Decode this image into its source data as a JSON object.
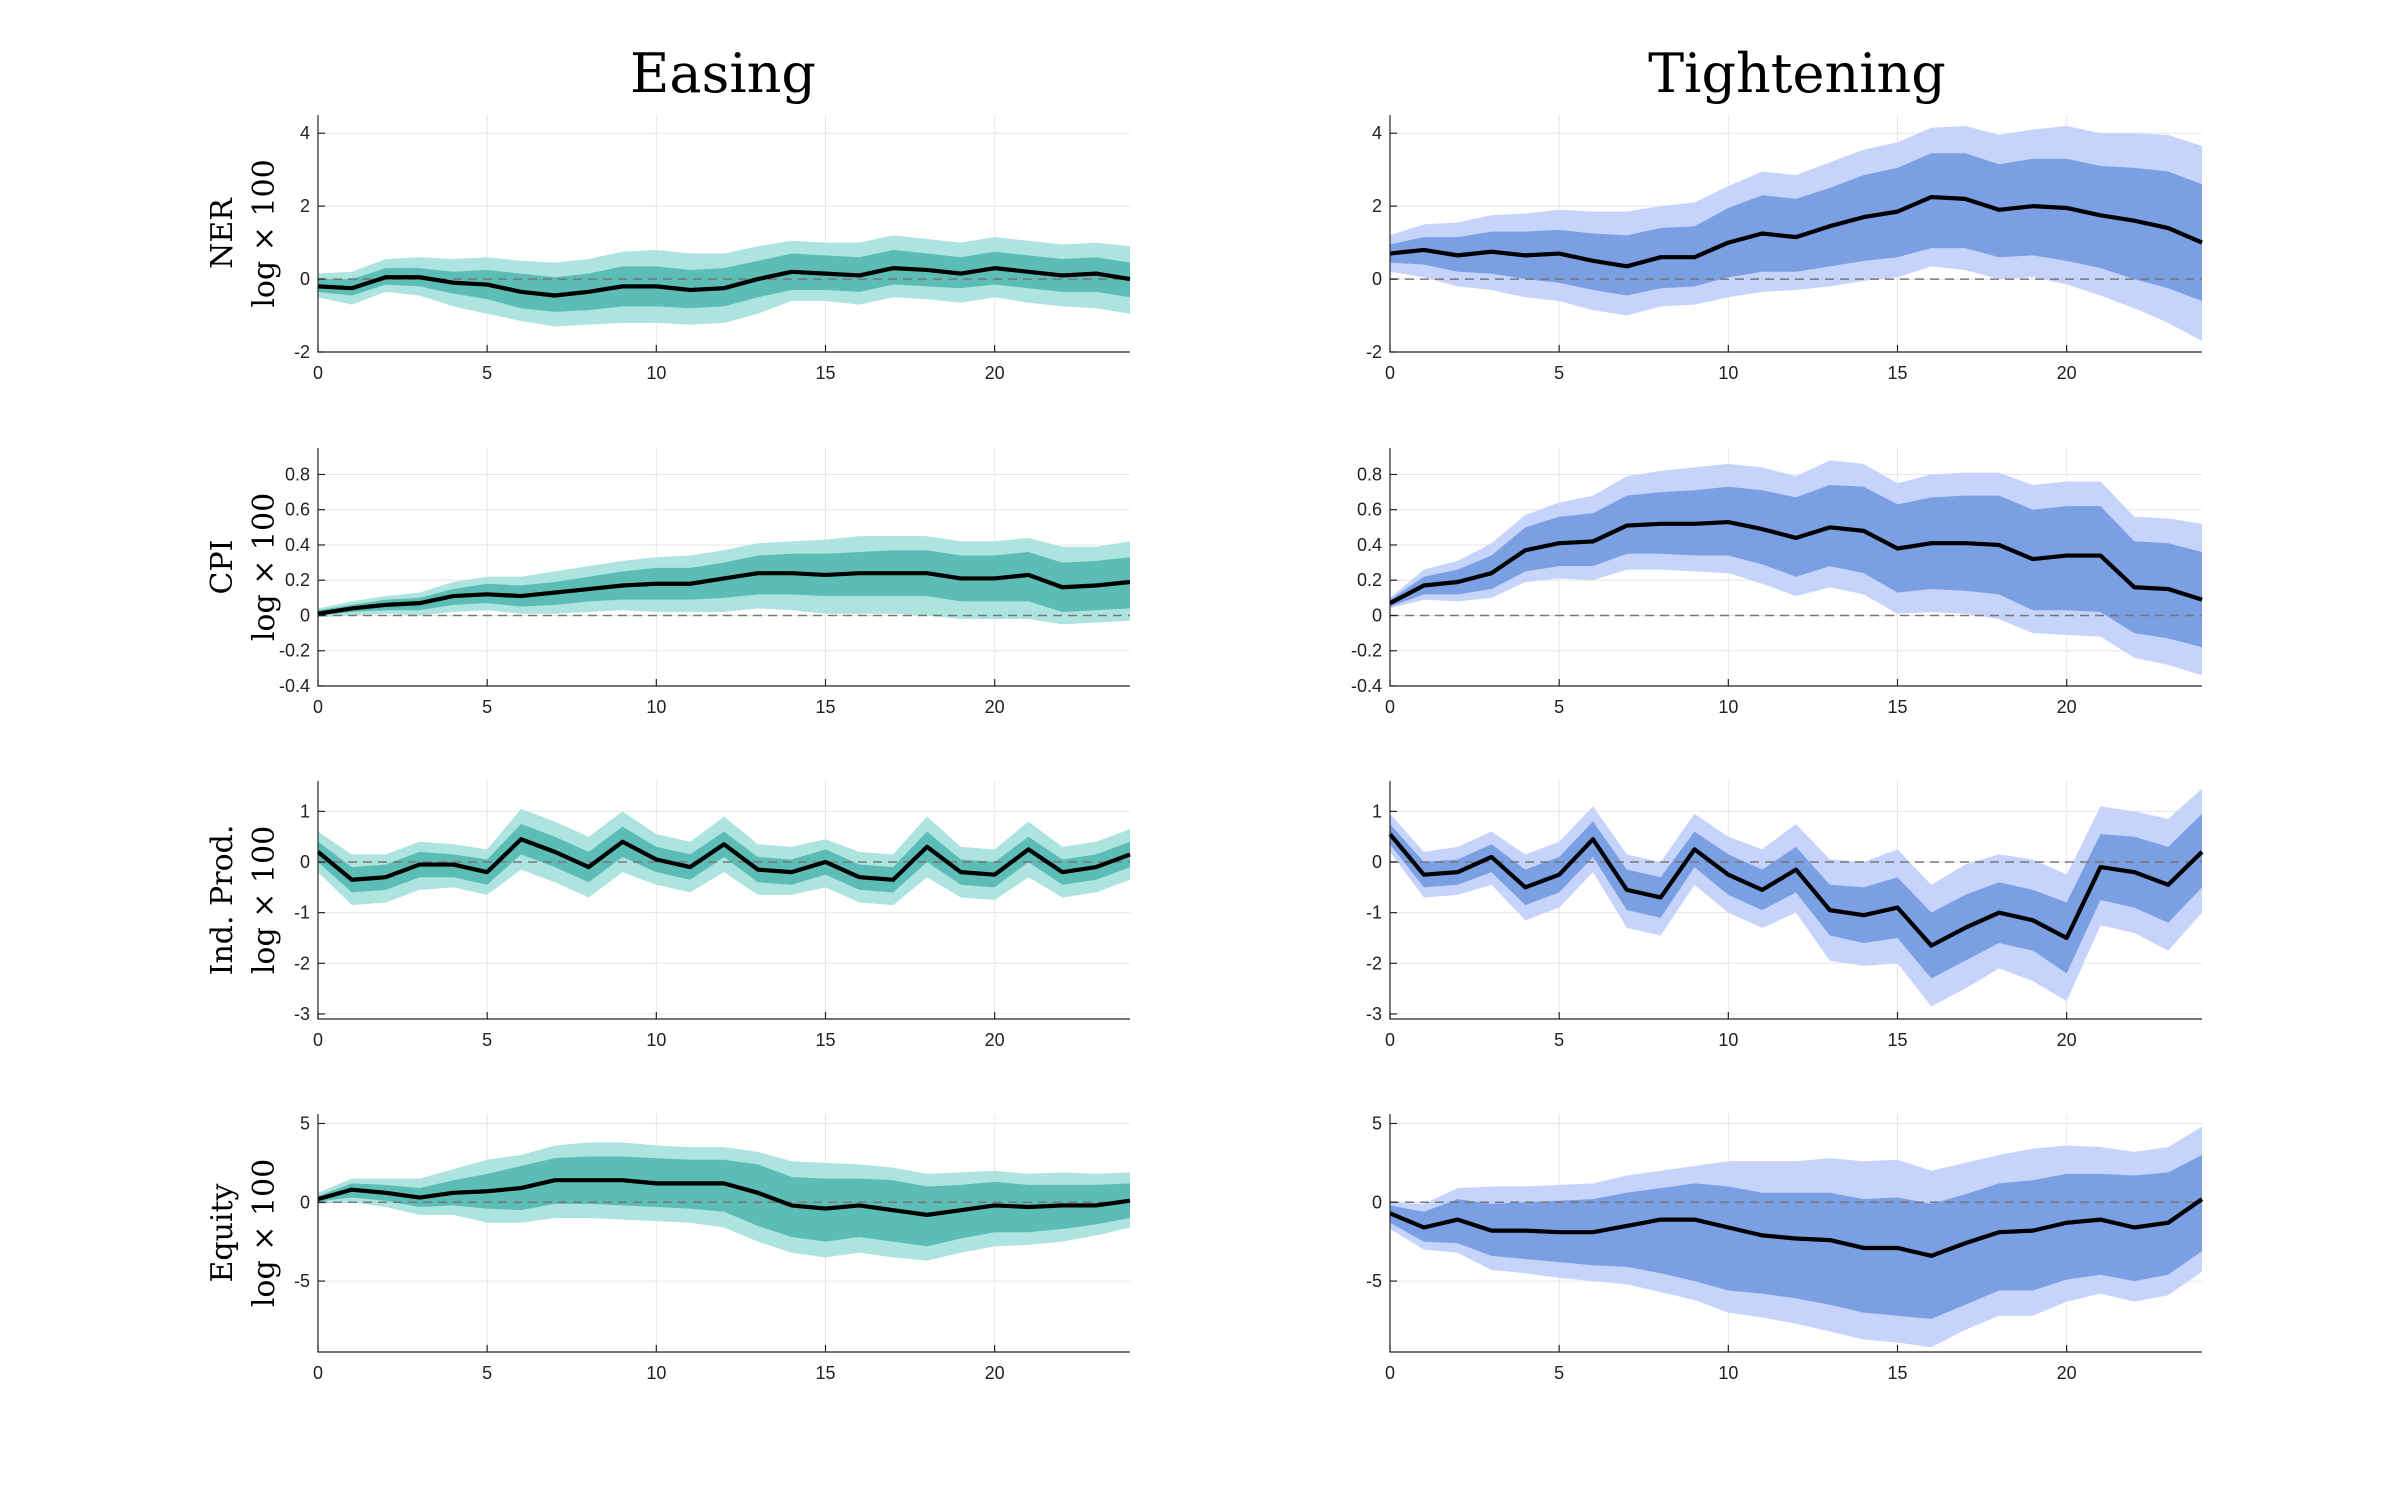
{
  "figure": {
    "col_titles": [
      "Easing",
      "Tightening"
    ],
    "colors": {
      "easing_outer": "#aee4df",
      "easing_inner": "#5bbdb6",
      "tightening_outer": "#c6d3fb",
      "tightening_inner": "#7b9fe3",
      "median": "#000000",
      "zero_line": "#777777"
    }
  },
  "chart_data": [
    {
      "type": "area",
      "panel": "ner-easing",
      "column": "Easing",
      "ylabel": [
        "NER",
        "log × 100"
      ],
      "xlim": [
        0,
        24
      ],
      "ylim": [
        -2,
        4.5
      ],
      "xticks": [
        0,
        5,
        10,
        15,
        20
      ],
      "yticks": [
        -2,
        0,
        2,
        4
      ],
      "ytick_labels": [
        "-2",
        "0",
        "2",
        "4"
      ],
      "median": [
        -0.2,
        -0.25,
        0.05,
        0.05,
        -0.1,
        -0.15,
        -0.35,
        -0.45,
        -0.35,
        -0.2,
        -0.2,
        -0.3,
        -0.25,
        0.0,
        0.2,
        0.15,
        0.1,
        0.3,
        0.25,
        0.15,
        0.3,
        0.2,
        0.1,
        0.15,
        0.0
      ],
      "band_inner_lo": [
        -0.35,
        -0.45,
        -0.15,
        -0.2,
        -0.4,
        -0.55,
        -0.8,
        -0.9,
        -0.85,
        -0.75,
        -0.75,
        -0.8,
        -0.75,
        -0.5,
        -0.3,
        -0.3,
        -0.35,
        -0.15,
        -0.2,
        -0.25,
        -0.15,
        -0.25,
        -0.35,
        -0.35,
        -0.5
      ],
      "band_inner_hi": [
        0.0,
        0.0,
        0.3,
        0.3,
        0.2,
        0.25,
        0.15,
        0.05,
        0.15,
        0.35,
        0.35,
        0.25,
        0.3,
        0.5,
        0.7,
        0.65,
        0.6,
        0.8,
        0.7,
        0.6,
        0.75,
        0.65,
        0.55,
        0.6,
        0.45
      ],
      "band_outer_lo": [
        -0.5,
        -0.7,
        -0.35,
        -0.45,
        -0.75,
        -0.95,
        -1.15,
        -1.3,
        -1.25,
        -1.2,
        -1.2,
        -1.25,
        -1.2,
        -0.95,
        -0.6,
        -0.6,
        -0.7,
        -0.5,
        -0.55,
        -0.65,
        -0.5,
        -0.65,
        -0.75,
        -0.8,
        -0.95
      ],
      "band_outer_hi": [
        0.15,
        0.2,
        0.55,
        0.6,
        0.55,
        0.6,
        0.5,
        0.45,
        0.55,
        0.75,
        0.8,
        0.7,
        0.7,
        0.9,
        1.05,
        1.0,
        1.0,
        1.2,
        1.1,
        1.0,
        1.15,
        1.05,
        0.95,
        1.0,
        0.9
      ]
    },
    {
      "type": "area",
      "panel": "ner-tightening",
      "column": "Tightening",
      "ylabel": [
        "NER",
        "log × 100"
      ],
      "xlim": [
        0,
        24
      ],
      "ylim": [
        -2,
        4.5
      ],
      "xticks": [
        0,
        5,
        10,
        15,
        20
      ],
      "yticks": [
        -2,
        0,
        2,
        4
      ],
      "ytick_labels": [
        "-2",
        "0",
        "2",
        "4"
      ],
      "median": [
        0.7,
        0.8,
        0.65,
        0.75,
        0.65,
        0.7,
        0.5,
        0.35,
        0.6,
        0.6,
        1.0,
        1.25,
        1.15,
        1.45,
        1.7,
        1.85,
        2.25,
        2.2,
        1.9,
        2.0,
        1.95,
        1.75,
        1.6,
        1.4,
        1.0
      ],
      "band_inner_lo": [
        0.45,
        0.4,
        0.2,
        0.15,
        0.0,
        -0.1,
        -0.3,
        -0.45,
        -0.25,
        -0.2,
        0.05,
        0.2,
        0.2,
        0.35,
        0.5,
        0.6,
        0.85,
        0.85,
        0.6,
        0.65,
        0.5,
        0.3,
        0.0,
        -0.25,
        -0.6
      ],
      "band_inner_hi": [
        0.95,
        1.15,
        1.15,
        1.3,
        1.3,
        1.35,
        1.25,
        1.2,
        1.4,
        1.45,
        1.95,
        2.3,
        2.2,
        2.5,
        2.85,
        3.05,
        3.45,
        3.45,
        3.15,
        3.3,
        3.3,
        3.1,
        3.05,
        2.95,
        2.6
      ],
      "band_outer_lo": [
        0.2,
        0.05,
        -0.2,
        -0.3,
        -0.5,
        -0.6,
        -0.85,
        -1.0,
        -0.75,
        -0.7,
        -0.5,
        -0.35,
        -0.3,
        -0.2,
        -0.05,
        0.05,
        0.35,
        0.25,
        0.0,
        0.05,
        -0.15,
        -0.45,
        -0.8,
        -1.2,
        -1.7
      ],
      "band_outer_hi": [
        1.2,
        1.5,
        1.55,
        1.75,
        1.8,
        1.9,
        1.85,
        1.85,
        2.0,
        2.1,
        2.55,
        2.95,
        2.85,
        3.2,
        3.55,
        3.75,
        4.15,
        4.2,
        3.95,
        4.1,
        4.2,
        4.0,
        4.0,
        3.95,
        3.65
      ]
    },
    {
      "type": "area",
      "panel": "cpi-easing",
      "column": "Easing",
      "ylabel": [
        "CPI",
        "log × 100"
      ],
      "xlim": [
        0,
        24
      ],
      "ylim": [
        -0.4,
        0.95
      ],
      "xticks": [
        0,
        5,
        10,
        15,
        20
      ],
      "yticks": [
        -0.4,
        -0.2,
        0,
        0.2,
        0.4,
        0.6,
        0.8
      ],
      "ytick_labels": [
        "-0.4",
        "-0.2",
        "0",
        "0.2",
        "0.4",
        "0.6",
        "0.8"
      ],
      "median": [
        0.01,
        0.04,
        0.06,
        0.07,
        0.11,
        0.12,
        0.11,
        0.13,
        0.15,
        0.17,
        0.18,
        0.18,
        0.21,
        0.24,
        0.24,
        0.23,
        0.24,
        0.24,
        0.24,
        0.21,
        0.21,
        0.23,
        0.16,
        0.17,
        0.19
      ],
      "band_inner_lo": [
        0.0,
        0.02,
        0.03,
        0.03,
        0.06,
        0.07,
        0.05,
        0.06,
        0.08,
        0.09,
        0.09,
        0.09,
        0.1,
        0.12,
        0.12,
        0.11,
        0.11,
        0.11,
        0.11,
        0.08,
        0.08,
        0.08,
        0.02,
        0.03,
        0.04
      ],
      "band_inner_hi": [
        0.03,
        0.06,
        0.09,
        0.1,
        0.15,
        0.18,
        0.17,
        0.19,
        0.22,
        0.25,
        0.27,
        0.27,
        0.3,
        0.34,
        0.35,
        0.35,
        0.36,
        0.37,
        0.37,
        0.34,
        0.34,
        0.36,
        0.3,
        0.31,
        0.33
      ],
      "band_outer_lo": [
        -0.01,
        0.0,
        0.01,
        0.0,
        0.02,
        0.03,
        0.01,
        0.01,
        0.02,
        0.03,
        0.02,
        0.02,
        0.02,
        0.04,
        0.03,
        0.01,
        0.01,
        0.01,
        0.0,
        -0.02,
        -0.02,
        -0.02,
        -0.05,
        -0.04,
        -0.03
      ],
      "band_outer_hi": [
        0.04,
        0.08,
        0.11,
        0.13,
        0.19,
        0.22,
        0.22,
        0.25,
        0.28,
        0.31,
        0.33,
        0.34,
        0.37,
        0.41,
        0.42,
        0.43,
        0.45,
        0.45,
        0.45,
        0.42,
        0.42,
        0.44,
        0.39,
        0.39,
        0.42
      ]
    },
    {
      "type": "area",
      "panel": "cpi-tightening",
      "column": "Tightening",
      "ylabel": [
        "CPI",
        "log × 100"
      ],
      "xlim": [
        0,
        24
      ],
      "ylim": [
        -0.4,
        0.95
      ],
      "xticks": [
        0,
        5,
        10,
        15,
        20
      ],
      "yticks": [
        -0.4,
        -0.2,
        0,
        0.2,
        0.4,
        0.6,
        0.8
      ],
      "ytick_labels": [
        "-0.4",
        "-0.2",
        "0",
        "0.2",
        "0.4",
        "0.6",
        "0.8"
      ],
      "median": [
        0.07,
        0.17,
        0.19,
        0.24,
        0.37,
        0.41,
        0.42,
        0.51,
        0.52,
        0.52,
        0.53,
        0.49,
        0.44,
        0.5,
        0.48,
        0.38,
        0.41,
        0.41,
        0.4,
        0.32,
        0.34,
        0.34,
        0.16,
        0.15,
        0.09
      ],
      "band_inner_lo": [
        0.05,
        0.12,
        0.12,
        0.15,
        0.25,
        0.28,
        0.28,
        0.35,
        0.35,
        0.34,
        0.34,
        0.29,
        0.22,
        0.28,
        0.24,
        0.13,
        0.15,
        0.14,
        0.12,
        0.03,
        0.03,
        0.02,
        -0.1,
        -0.13,
        -0.18
      ],
      "band_inner_hi": [
        0.09,
        0.22,
        0.26,
        0.34,
        0.5,
        0.56,
        0.58,
        0.68,
        0.7,
        0.71,
        0.73,
        0.71,
        0.67,
        0.74,
        0.73,
        0.63,
        0.67,
        0.68,
        0.68,
        0.6,
        0.62,
        0.62,
        0.42,
        0.41,
        0.36
      ],
      "band_outer_lo": [
        0.04,
        0.09,
        0.08,
        0.1,
        0.19,
        0.21,
        0.2,
        0.26,
        0.26,
        0.25,
        0.24,
        0.18,
        0.11,
        0.16,
        0.12,
        0.01,
        0.02,
        0.01,
        -0.02,
        -0.1,
        -0.11,
        -0.12,
        -0.24,
        -0.28,
        -0.34
      ],
      "band_outer_hi": [
        0.1,
        0.26,
        0.31,
        0.41,
        0.57,
        0.64,
        0.68,
        0.79,
        0.82,
        0.84,
        0.86,
        0.84,
        0.79,
        0.88,
        0.86,
        0.75,
        0.8,
        0.81,
        0.81,
        0.74,
        0.76,
        0.76,
        0.56,
        0.55,
        0.52
      ]
    },
    {
      "type": "area",
      "panel": "ip-easing",
      "column": "Easing",
      "ylabel": [
        "Ind. Prod.",
        "log × 100"
      ],
      "xlim": [
        0,
        24
      ],
      "ylim": [
        -3.1,
        1.6
      ],
      "xticks": [
        0,
        5,
        10,
        15,
        20
      ],
      "yticks": [
        -3,
        -2,
        -1,
        0,
        1
      ],
      "ytick_labels": [
        "-3",
        "-2",
        "-1",
        "0",
        "1"
      ],
      "median": [
        0.2,
        -0.35,
        -0.3,
        -0.05,
        -0.05,
        -0.2,
        0.45,
        0.2,
        -0.1,
        0.4,
        0.05,
        -0.1,
        0.35,
        -0.15,
        -0.2,
        0.0,
        -0.3,
        -0.35,
        0.3,
        -0.2,
        -0.25,
        0.25,
        -0.2,
        -0.1,
        0.15
      ],
      "band_inner_lo": [
        0.0,
        -0.6,
        -0.55,
        -0.3,
        -0.3,
        -0.45,
        0.15,
        -0.1,
        -0.4,
        0.1,
        -0.2,
        -0.35,
        0.1,
        -0.4,
        -0.45,
        -0.25,
        -0.55,
        -0.6,
        0.0,
        -0.45,
        -0.5,
        0.0,
        -0.45,
        -0.35,
        -0.1
      ],
      "band_inner_hi": [
        0.4,
        -0.1,
        -0.05,
        0.2,
        0.15,
        0.05,
        0.75,
        0.5,
        0.2,
        0.7,
        0.3,
        0.15,
        0.6,
        0.1,
        0.05,
        0.25,
        -0.05,
        -0.1,
        0.6,
        0.05,
        0.0,
        0.5,
        0.05,
        0.15,
        0.4
      ],
      "band_outer_lo": [
        -0.2,
        -0.85,
        -0.8,
        -0.55,
        -0.5,
        -0.65,
        -0.15,
        -0.4,
        -0.7,
        -0.2,
        -0.45,
        -0.6,
        -0.2,
        -0.65,
        -0.65,
        -0.5,
        -0.8,
        -0.85,
        -0.3,
        -0.7,
        -0.75,
        -0.3,
        -0.7,
        -0.6,
        -0.35
      ],
      "band_outer_hi": [
        0.6,
        0.15,
        0.15,
        0.4,
        0.35,
        0.25,
        1.05,
        0.8,
        0.5,
        1.0,
        0.55,
        0.4,
        0.9,
        0.35,
        0.3,
        0.45,
        0.2,
        0.15,
        0.9,
        0.3,
        0.25,
        0.8,
        0.3,
        0.4,
        0.65
      ]
    },
    {
      "type": "area",
      "panel": "ip-tightening",
      "column": "Tightening",
      "ylabel": [
        "Ind. Prod.",
        "log × 100"
      ],
      "xlim": [
        0,
        24
      ],
      "ylim": [
        -3.1,
        1.6
      ],
      "xticks": [
        0,
        5,
        10,
        15,
        20
      ],
      "yticks": [
        -3,
        -2,
        -1,
        0,
        1
      ],
      "ytick_labels": [
        "-3",
        "-2",
        "-1",
        "0",
        "1"
      ],
      "median": [
        0.55,
        -0.25,
        -0.2,
        0.1,
        -0.5,
        -0.25,
        0.45,
        -0.55,
        -0.7,
        0.25,
        -0.25,
        -0.55,
        -0.15,
        -0.95,
        -1.05,
        -0.9,
        -1.65,
        -1.3,
        -1.0,
        -1.15,
        -1.5,
        -0.1,
        -0.2,
        -0.45,
        0.2
      ],
      "band_inner_lo": [
        0.35,
        -0.5,
        -0.45,
        -0.2,
        -0.85,
        -0.6,
        0.1,
        -0.95,
        -1.1,
        -0.1,
        -0.65,
        -0.95,
        -0.6,
        -1.45,
        -1.6,
        -1.5,
        -2.3,
        -1.95,
        -1.6,
        -1.75,
        -2.2,
        -0.75,
        -0.9,
        -1.2,
        -0.5
      ],
      "band_inner_hi": [
        0.75,
        0.0,
        0.05,
        0.35,
        -0.15,
        0.1,
        0.8,
        -0.15,
        -0.3,
        0.6,
        0.15,
        -0.15,
        0.3,
        -0.45,
        -0.5,
        -0.3,
        -1.0,
        -0.65,
        -0.4,
        -0.55,
        -0.8,
        0.55,
        0.5,
        0.3,
        0.95
      ],
      "band_outer_lo": [
        0.2,
        -0.7,
        -0.65,
        -0.45,
        -1.15,
        -0.9,
        -0.2,
        -1.3,
        -1.45,
        -0.45,
        -1.0,
        -1.3,
        -1.0,
        -1.95,
        -2.05,
        -2.0,
        -2.85,
        -2.5,
        -2.1,
        -2.35,
        -2.75,
        -1.25,
        -1.4,
        -1.75,
        -1.0
      ],
      "band_outer_hi": [
        0.95,
        0.2,
        0.3,
        0.6,
        0.15,
        0.4,
        1.1,
        0.15,
        0.0,
        0.95,
        0.5,
        0.25,
        0.75,
        0.05,
        0.0,
        0.25,
        -0.45,
        -0.05,
        0.15,
        0.05,
        -0.25,
        1.1,
        1.0,
        0.85,
        1.45
      ]
    },
    {
      "type": "area",
      "panel": "equity-easing",
      "column": "Easing",
      "ylabel": [
        "Equity",
        "log × 100"
      ],
      "xlim": [
        0,
        24
      ],
      "ylim": [
        -9.5,
        5.6
      ],
      "xticks": [
        0,
        5,
        10,
        15,
        20
      ],
      "yticks": [
        -5,
        0,
        5
      ],
      "ytick_labels": [
        "-5",
        "0",
        "5"
      ],
      "median": [
        0.2,
        0.8,
        0.6,
        0.3,
        0.6,
        0.7,
        0.9,
        1.4,
        1.4,
        1.4,
        1.2,
        1.2,
        1.2,
        0.6,
        -0.2,
        -0.4,
        -0.2,
        -0.5,
        -0.8,
        -0.5,
        -0.2,
        -0.3,
        -0.2,
        -0.2,
        0.1
      ],
      "band_inner_lo": [
        0.05,
        0.3,
        0.1,
        -0.3,
        -0.2,
        -0.4,
        -0.5,
        -0.1,
        -0.1,
        -0.2,
        -0.3,
        -0.4,
        -0.6,
        -1.5,
        -2.2,
        -2.5,
        -2.2,
        -2.5,
        -2.8,
        -2.3,
        -1.9,
        -1.9,
        -1.7,
        -1.4,
        -1.0
      ],
      "band_inner_hi": [
        0.4,
        1.2,
        1.1,
        0.9,
        1.4,
        1.8,
        2.3,
        2.8,
        2.9,
        2.9,
        2.8,
        2.7,
        2.7,
        2.4,
        1.6,
        1.5,
        1.5,
        1.4,
        1.0,
        1.1,
        1.3,
        1.1,
        1.1,
        1.1,
        1.2
      ],
      "band_outer_lo": [
        -0.1,
        0.0,
        -0.3,
        -0.8,
        -0.8,
        -1.3,
        -1.3,
        -1.0,
        -1.0,
        -1.1,
        -1.2,
        -1.3,
        -1.6,
        -2.5,
        -3.2,
        -3.5,
        -3.2,
        -3.5,
        -3.7,
        -3.2,
        -2.8,
        -2.7,
        -2.5,
        -2.1,
        -1.6
      ],
      "band_outer_hi": [
        0.6,
        1.5,
        1.5,
        1.5,
        2.1,
        2.7,
        3.0,
        3.6,
        3.8,
        3.8,
        3.6,
        3.5,
        3.5,
        3.2,
        2.6,
        2.5,
        2.4,
        2.2,
        1.8,
        1.9,
        2.0,
        1.8,
        1.9,
        1.8,
        1.9
      ]
    },
    {
      "type": "area",
      "panel": "equity-tightening",
      "column": "Tightening",
      "ylabel": [
        "Equity",
        "log × 100"
      ],
      "xlim": [
        0,
        24
      ],
      "ylim": [
        -9.5,
        5.6
      ],
      "xticks": [
        0,
        5,
        10,
        15,
        20
      ],
      "yticks": [
        -5,
        0,
        5
      ],
      "ytick_labels": [
        "-5",
        "0",
        "5"
      ],
      "median": [
        -0.7,
        -1.6,
        -1.1,
        -1.8,
        -1.8,
        -1.9,
        -1.9,
        -1.5,
        -1.1,
        -1.1,
        -1.6,
        -2.1,
        -2.3,
        -2.4,
        -2.9,
        -2.9,
        -3.4,
        -2.6,
        -1.9,
        -1.8,
        -1.3,
        -1.1,
        -1.6,
        -1.3,
        0.2
      ],
      "band_inner_lo": [
        -1.3,
        -2.5,
        -2.6,
        -3.4,
        -3.6,
        -3.8,
        -4.0,
        -4.1,
        -4.5,
        -5.0,
        -5.6,
        -5.8,
        -6.1,
        -6.5,
        -7.0,
        -7.2,
        -7.4,
        -6.5,
        -5.6,
        -5.6,
        -4.9,
        -4.6,
        -5.0,
        -4.6,
        -3.1
      ],
      "band_inner_hi": [
        -0.2,
        -0.6,
        0.2,
        -0.1,
        0.0,
        0.1,
        0.2,
        0.6,
        0.9,
        1.2,
        1.0,
        0.6,
        0.6,
        0.6,
        0.2,
        0.3,
        -0.1,
        0.5,
        1.2,
        1.4,
        1.8,
        1.8,
        1.7,
        1.9,
        3.0
      ],
      "band_outer_lo": [
        -1.7,
        -3.0,
        -3.2,
        -4.3,
        -4.5,
        -4.8,
        -5.0,
        -5.2,
        -5.7,
        -6.2,
        -7.0,
        -7.3,
        -7.7,
        -8.2,
        -8.7,
        -8.9,
        -9.2,
        -8.1,
        -7.2,
        -7.2,
        -6.3,
        -5.8,
        -6.3,
        -5.9,
        -4.4
      ],
      "band_outer_hi": [
        0.0,
        -0.1,
        0.9,
        1.0,
        1.0,
        1.1,
        1.2,
        1.7,
        2.0,
        2.3,
        2.6,
        2.6,
        2.6,
        2.8,
        2.6,
        2.7,
        2.0,
        2.5,
        3.0,
        3.4,
        3.6,
        3.5,
        3.2,
        3.5,
        4.8
      ]
    }
  ]
}
